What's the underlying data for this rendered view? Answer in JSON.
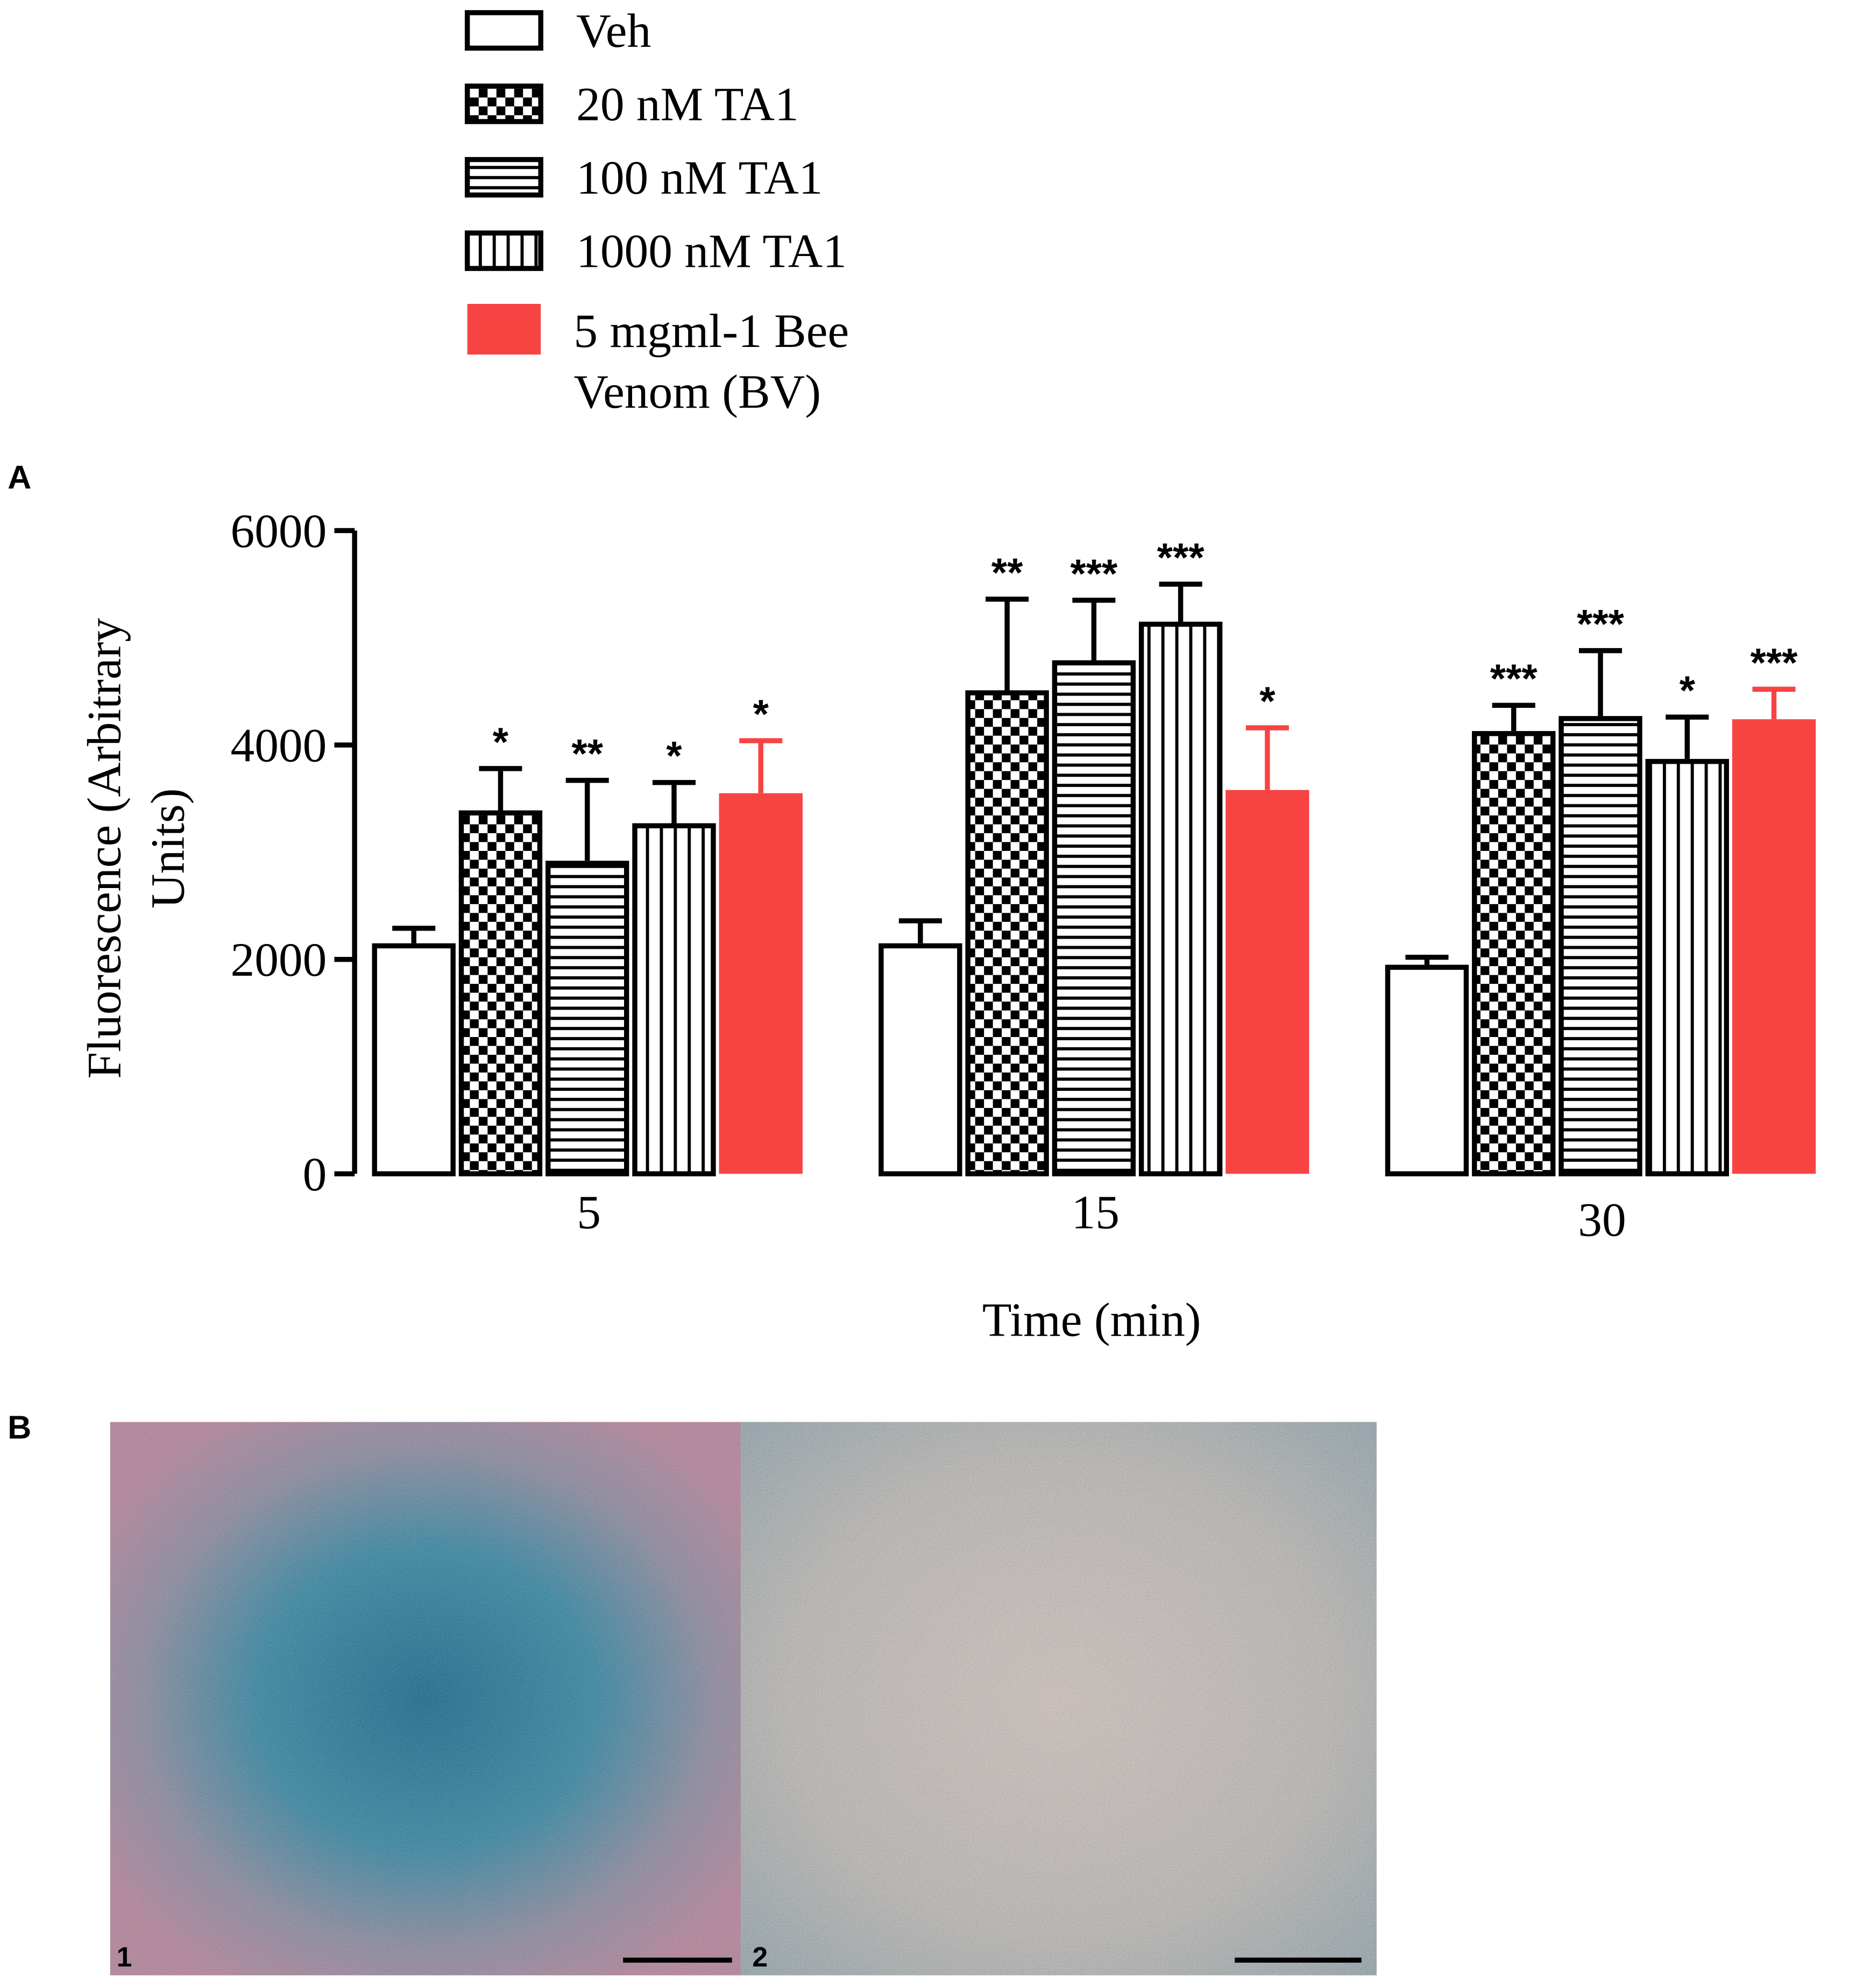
{
  "panel_labels": [
    "A",
    "B"
  ],
  "chart_data": {
    "type": "bar",
    "xlabel": "Time (min)",
    "ylabel": "Fluorescence (Arbitrary Units)",
    "categories": [
      "5",
      "15",
      "30"
    ],
    "ylim": [
      0,
      6000
    ],
    "yticks": [
      0,
      2000,
      4000,
      6000
    ],
    "series": [
      {
        "name": "Veh",
        "color": "#ffffff",
        "pattern": "none",
        "values": [
          2150,
          2150,
          1950
        ],
        "errors": [
          140,
          210,
          70
        ],
        "value_labels": [
          null,
          null,
          null
        ]
      },
      {
        "name": "20 nM TA1",
        "color": "#ffffff",
        "pattern": "checker",
        "values": [
          3390,
          4510,
          4130
        ],
        "errors": [
          390,
          850,
          240
        ],
        "value_labels": [
          "*",
          "**",
          "***"
        ]
      },
      {
        "name": "100 nM TA1",
        "color": "#ffffff",
        "pattern": "horizontal",
        "values": [
          2920,
          4790,
          4270
        ],
        "errors": [
          750,
          560,
          610
        ],
        "value_labels": [
          "**",
          "***",
          "***"
        ]
      },
      {
        "name": "1000 nM TA1",
        "color": "#ffffff",
        "pattern": "vertical",
        "values": [
          3270,
          5150,
          3870
        ],
        "errors": [
          380,
          350,
          390
        ],
        "value_labels": [
          "*",
          "***",
          "*"
        ]
      },
      {
        "name": "5 mgml-1 Bee Venom (BV)",
        "color": "#f84343",
        "pattern": "solid",
        "values": [
          3550,
          3580,
          4240
        ],
        "errors": [
          490,
          580,
          280
        ],
        "value_labels": [
          "*",
          "*",
          "***"
        ]
      }
    ]
  },
  "images": [
    {
      "label": "1"
    },
    {
      "label": "2"
    }
  ]
}
